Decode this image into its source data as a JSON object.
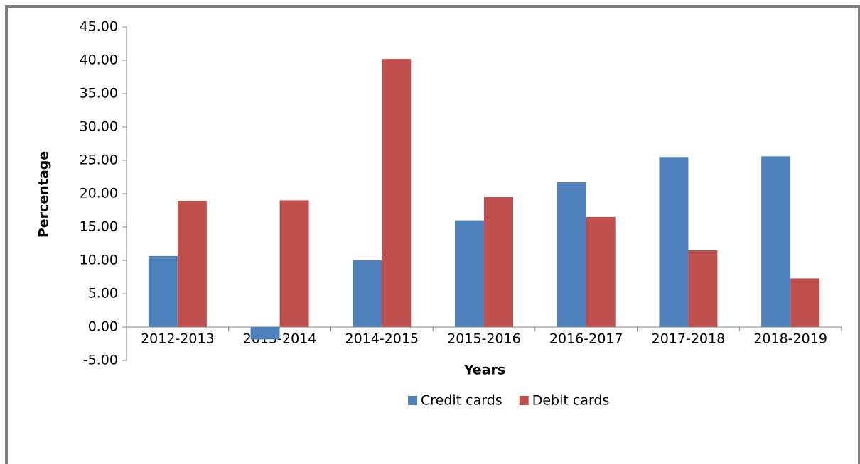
{
  "chart_data": {
    "type": "bar",
    "xlabel": "Years",
    "ylabel": "Percentage",
    "categories": [
      "2012-2013",
      "2013-2014",
      "2014-2015",
      "2015-2016",
      "2016-2017",
      "2017-2018",
      "2018-2019"
    ],
    "series": [
      {
        "name": "Credit cards",
        "color": "#4f81bd",
        "values": [
          10.65,
          -1.85,
          10.0,
          16.0,
          21.7,
          25.5,
          25.6
        ]
      },
      {
        "name": "Debit cards",
        "color": "#c0504d",
        "values": [
          18.9,
          19.0,
          40.2,
          19.5,
          16.5,
          11.5,
          7.3
        ]
      }
    ],
    "ylim": [
      -5,
      45
    ],
    "yticks": [
      {
        "value": -5,
        "label": "-5.00"
      },
      {
        "value": 0,
        "label": "0.00"
      },
      {
        "value": 5,
        "label": "5.00"
      },
      {
        "value": 10,
        "label": "10.00"
      },
      {
        "value": 15,
        "label": "15.00"
      },
      {
        "value": 20,
        "label": "20.00"
      },
      {
        "value": 25,
        "label": "25.00"
      },
      {
        "value": 30,
        "label": "30.00"
      },
      {
        "value": 35,
        "label": "35.00"
      },
      {
        "value": 40,
        "label": "40.00"
      },
      {
        "value": 45,
        "label": "45.00"
      }
    ],
    "legend": "bottom"
  }
}
